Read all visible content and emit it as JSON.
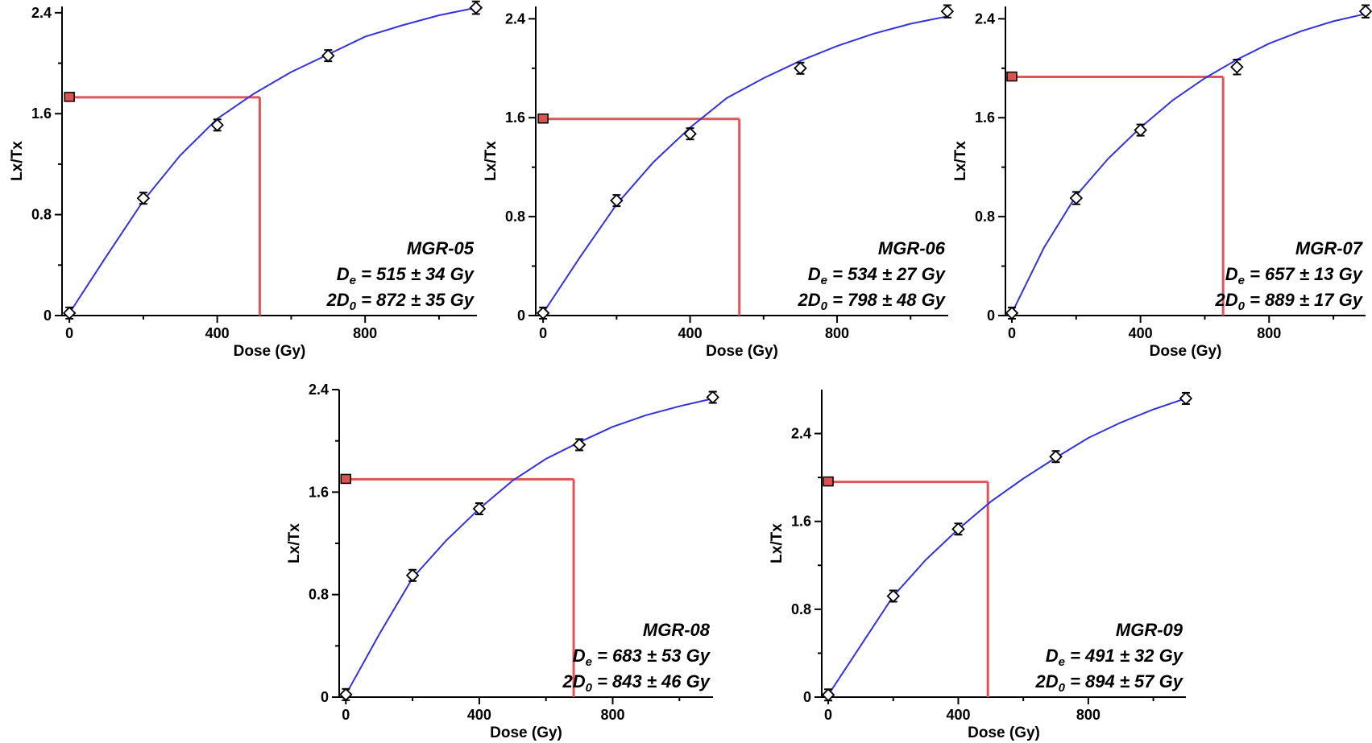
{
  "colors": {
    "fit": "#3333dd",
    "guide": "#e0555a",
    "marker": "#d9534f",
    "axis": "#000000",
    "point_fill": "#ffffff"
  },
  "chart_data": [
    {
      "type": "line",
      "sample": "MGR-05",
      "xlabel": "Dose (Gy)",
      "ylabel": "Lx/Tx",
      "xlim": [
        -20,
        1120
      ],
      "ylim": [
        0,
        2.45
      ],
      "xticks": [
        0,
        400,
        800
      ],
      "xminor": [
        200,
        600,
        1000
      ],
      "yticks": [
        0,
        0.8,
        1.6,
        2.4
      ],
      "yminor": [
        0.4,
        1.2,
        2.0
      ],
      "series": [
        {
          "x": [
            0,
            200,
            400,
            700,
            1100
          ],
          "y": [
            0.02,
            0.93,
            1.51,
            2.06,
            2.44
          ],
          "err": [
            0.02,
            0.03,
            0.04,
            0.04,
            0.05
          ]
        }
      ],
      "fit_curve": {
        "x": [
          0,
          100,
          200,
          300,
          400,
          500,
          600,
          700,
          800,
          900,
          1000,
          1100
        ],
        "y": [
          0.02,
          0.47,
          0.91,
          1.27,
          1.56,
          1.76,
          1.93,
          2.07,
          2.21,
          2.3,
          2.38,
          2.44
        ]
      },
      "natural_signal": 1.73,
      "natural_x": 0,
      "de_value": 515,
      "annotation": {
        "name": "MGR-05",
        "de_prefix": "D",
        "de_sub": "e",
        "de_text": " = 515 ± 34 Gy",
        "d0_prefix": "2D",
        "d0_sub": "0",
        "d0_text": " = 872 ± 35 Gy"
      }
    },
    {
      "type": "line",
      "sample": "MGR-06",
      "xlabel": "Dose (Gy)",
      "ylabel": "Lx/Tx",
      "xlim": [
        -20,
        1120
      ],
      "ylim": [
        0,
        2.5
      ],
      "xticks": [
        0,
        400,
        800
      ],
      "xminor": [
        200,
        600,
        1000
      ],
      "yticks": [
        0,
        0.8,
        1.6,
        2.4
      ],
      "yminor": [
        0.4,
        1.2,
        2.0
      ],
      "series": [
        {
          "x": [
            0,
            200,
            400,
            700,
            1100
          ],
          "y": [
            0.02,
            0.93,
            1.47,
            2.0,
            2.46
          ],
          "err": [
            0.02,
            0.03,
            0.04,
            0.04,
            0.05
          ]
        }
      ],
      "fit_curve": {
        "x": [
          0,
          100,
          200,
          300,
          400,
          500,
          600,
          700,
          800,
          900,
          1000,
          1100
        ],
        "y": [
          0.02,
          0.47,
          0.9,
          1.24,
          1.52,
          1.76,
          1.92,
          2.06,
          2.18,
          2.28,
          2.36,
          2.42
        ]
      },
      "natural_signal": 1.59,
      "natural_x": 0,
      "de_value": 534,
      "annotation": {
        "name": "MGR-06",
        "de_prefix": "D",
        "de_sub": "e",
        "de_text": " = 534 ± 27 Gy",
        "d0_prefix": "2D",
        "d0_sub": "0",
        "d0_text": " = 798 ± 48 Gy"
      }
    },
    {
      "type": "line",
      "sample": "MGR-07",
      "xlabel": "Dose (Gy)",
      "ylabel": "Lx/Tx",
      "xlim": [
        -20,
        1120
      ],
      "ylim": [
        0,
        2.5
      ],
      "xticks": [
        0,
        400,
        800
      ],
      "xminor": [
        200,
        600,
        1000
      ],
      "yticks": [
        0,
        0.8,
        1.6,
        2.4
      ],
      "yminor": [
        0.4,
        1.2,
        2.0
      ],
      "series": [
        {
          "x": [
            0,
            200,
            400,
            700,
            1100
          ],
          "y": [
            0.02,
            0.95,
            1.5,
            2.01,
            2.46
          ],
          "err": [
            0.02,
            0.05,
            0.04,
            0.06,
            0.05
          ]
        }
      ],
      "fit_curve": {
        "x": [
          0,
          100,
          200,
          300,
          400,
          500,
          600,
          700,
          800,
          900,
          1000,
          1100
        ],
        "y": [
          0.02,
          0.55,
          0.97,
          1.27,
          1.52,
          1.74,
          1.92,
          2.07,
          2.2,
          2.3,
          2.38,
          2.44
        ]
      },
      "natural_signal": 1.93,
      "natural_x": 0,
      "de_value": 657,
      "annotation": {
        "name": "MGR-07",
        "de_prefix": "D",
        "de_sub": "e",
        "de_text": " = 657 ± 13 Gy",
        "d0_prefix": "2D",
        "d0_sub": "0",
        "d0_text": " = 889 ± 17 Gy"
      }
    },
    {
      "type": "line",
      "sample": "MGR-08",
      "xlabel": "Dose (Gy)",
      "ylabel": "Lx/Tx",
      "xlim": [
        -20,
        1120
      ],
      "ylim": [
        0,
        2.4
      ],
      "xticks": [
        0,
        400,
        800
      ],
      "xminor": [
        200,
        600,
        1000
      ],
      "yticks": [
        0,
        0.8,
        1.6,
        2.4
      ],
      "yminor": [
        0.4,
        1.2,
        2.0
      ],
      "series": [
        {
          "x": [
            0,
            200,
            400,
            700,
            1100
          ],
          "y": [
            0.02,
            0.95,
            1.47,
            1.97,
            2.34
          ],
          "err": [
            0.02,
            0.04,
            0.04,
            0.04,
            0.04
          ]
        }
      ],
      "fit_curve": {
        "x": [
          0,
          100,
          200,
          300,
          400,
          500,
          600,
          700,
          800,
          900,
          1000,
          1100
        ],
        "y": [
          0.02,
          0.49,
          0.93,
          1.22,
          1.47,
          1.69,
          1.86,
          1.99,
          2.11,
          2.2,
          2.27,
          2.33
        ]
      },
      "natural_signal": 1.7,
      "natural_x": 0,
      "de_value": 683,
      "annotation": {
        "name": "MGR-08",
        "de_prefix": "D",
        "de_sub": "e",
        "de_text": " = 683 ± 53 Gy",
        "d0_prefix": "2D",
        "d0_sub": "0",
        "d0_text": " = 843 ± 46 Gy"
      }
    },
    {
      "type": "line",
      "sample": "MGR-09",
      "xlabel": "Dose (Gy)",
      "ylabel": "Lx/Tx",
      "xlim": [
        -20,
        1120
      ],
      "ylim": [
        0,
        2.8
      ],
      "xticks": [
        0,
        400,
        800
      ],
      "xminor": [
        200,
        600,
        1000
      ],
      "yticks": [
        0,
        0.8,
        1.6,
        2.4
      ],
      "yminor": [
        0.4,
        1.2,
        2.0
      ],
      "series": [
        {
          "x": [
            0,
            200,
            400,
            700,
            1100
          ],
          "y": [
            0.02,
            0.92,
            1.53,
            2.19,
            2.72
          ],
          "err": [
            0.02,
            0.03,
            0.04,
            0.04,
            0.05
          ]
        }
      ],
      "fit_curve": {
        "x": [
          0,
          100,
          200,
          300,
          400,
          500,
          600,
          700,
          800,
          900,
          1000,
          1100
        ],
        "y": [
          0.02,
          0.47,
          0.92,
          1.25,
          1.53,
          1.78,
          1.99,
          2.18,
          2.36,
          2.5,
          2.62,
          2.72
        ]
      },
      "natural_signal": 1.96,
      "natural_x": 0,
      "de_value": 491,
      "annotation": {
        "name": "MGR-09",
        "de_prefix": "D",
        "de_sub": "e",
        "de_text": " = 491 ± 32 Gy",
        "d0_prefix": "2D",
        "d0_sub": "0",
        "d0_text": " = 894 ± 57 Gy"
      }
    }
  ]
}
